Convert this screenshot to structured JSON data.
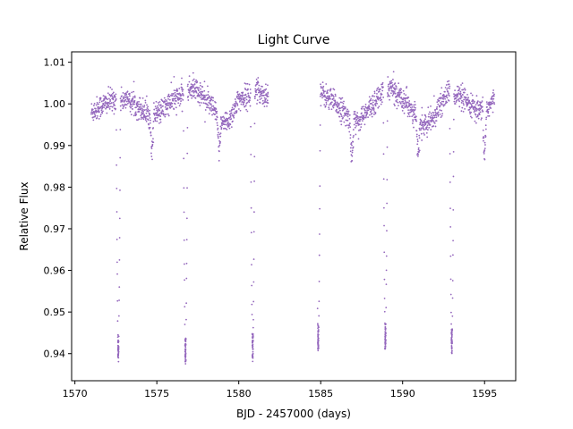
{
  "chart_data": {
    "type": "scatter",
    "title": "Light Curve",
    "xlabel": "BJD - 2457000 (days)",
    "ylabel": "Relative Flux",
    "xlim": [
      1569.8,
      1596.9
    ],
    "ylim": [
      0.9335,
      1.0125
    ],
    "x_ticks": [
      1570,
      1575,
      1580,
      1585,
      1590,
      1595
    ],
    "x_tick_labels": [
      "1570",
      "1575",
      "1580",
      "1585",
      "1590",
      "1595"
    ],
    "y_ticks": [
      0.94,
      0.95,
      0.96,
      0.97,
      0.98,
      0.99,
      1.0,
      1.01
    ],
    "y_tick_labels": [
      "0.94",
      "0.95",
      "0.96",
      "0.97",
      "0.98",
      "0.99",
      "1.00",
      "1.01"
    ],
    "grid": false,
    "legend": "none",
    "marker_color": "#9467bd",
    "series": [
      {
        "baseline": {
          "x": [
            1571.0,
            1571.8,
            1572.4,
            1573.2,
            1574.0,
            1574.6,
            1575.2,
            1576.0,
            1576.6,
            1577.2,
            1577.8,
            1578.4,
            1578.9,
            1579.4,
            1580.0,
            1580.6,
            1581.2,
            1581.8,
            1584.9,
            1585.6,
            1586.2,
            1586.8,
            1587.4,
            1588.0,
            1588.6,
            1589.2,
            1589.8,
            1590.4,
            1591.0,
            1591.6,
            1592.2,
            1592.8,
            1593.4,
            1594.0,
            1594.6,
            1595.2,
            1595.6
          ],
          "y": [
            0.998,
            1.0,
            1.001,
            1.001,
            0.999,
            0.997,
            0.998,
            1.001,
            1.002,
            1.004,
            1.002,
            0.999,
            0.995,
            0.996,
            1.001,
            1.002,
            1.003,
            1.002,
            1.003,
            1.001,
            0.999,
            0.996,
            0.996,
            0.999,
            1.002,
            1.004,
            1.002,
            1.0,
            0.995,
            0.995,
            0.999,
            1.003,
            1.002,
            1.0,
            0.998,
            0.999,
            1.001
          ]
        },
        "eclipses": [
          {
            "center": 1572.65,
            "min": 0.939
          },
          {
            "center": 1576.75,
            "min": 0.938
          },
          {
            "center": 1580.85,
            "min": 0.939
          },
          {
            "center": 1584.85,
            "min": 0.941
          },
          {
            "center": 1588.95,
            "min": 0.941
          },
          {
            "center": 1593.0,
            "min": 0.94
          }
        ],
        "secondary_dips": [
          {
            "center": 1574.7,
            "min": 0.989
          },
          {
            "center": 1578.8,
            "min": 0.989
          },
          {
            "center": 1586.9,
            "min": 0.987
          },
          {
            "center": 1590.95,
            "min": 0.988
          },
          {
            "center": 1595.0,
            "min": 0.988
          }
        ],
        "gaps": [
          [
            1581.8,
            1584.8
          ]
        ],
        "data_range": [
          1571.0,
          1595.6
        ],
        "scatter": 0.0014
      }
    ]
  }
}
